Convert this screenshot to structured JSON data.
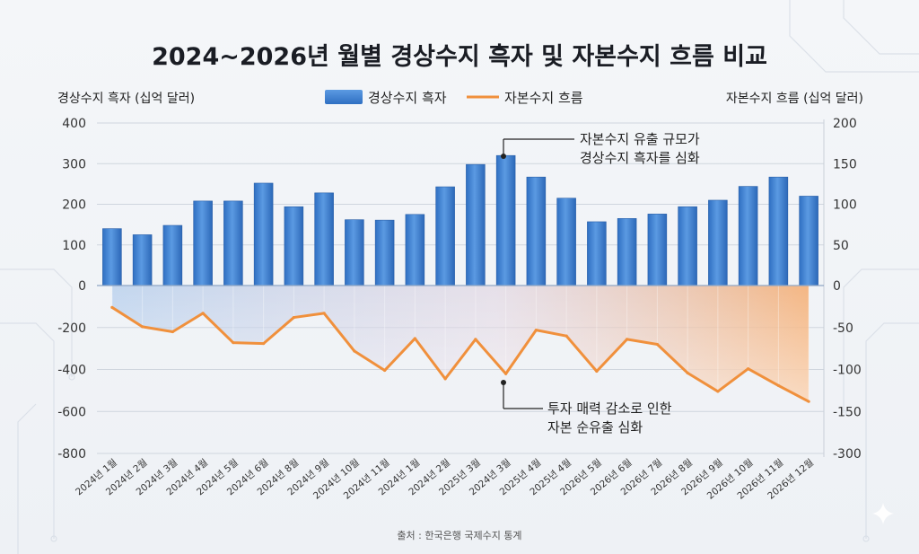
{
  "chart_data": {
    "type": "bar+line",
    "title": "2024~2026년 월별 경상수지 흑자 및 자본수지 흐름 비교",
    "ylabel_left": "경상수지 흑자 (십억 달러)",
    "ylabel_right": "자본수지 흐름 (십억 달러)",
    "ylim_left": [
      -800,
      400
    ],
    "ylim_right": [
      -300,
      200
    ],
    "yticks_left": [
      "400",
      "300",
      "200",
      "100",
      "0",
      "-200",
      "-400",
      "-600",
      "-800"
    ],
    "yticks_right": [
      "200",
      "150",
      "100",
      "50",
      "0",
      "-50",
      "-100",
      "-150",
      "-300"
    ],
    "categories": [
      "2024년 1월",
      "2024년 2월",
      "2024년 3월",
      "2024년 4월",
      "2024년 5월",
      "2024년 6월",
      "2024년 8월",
      "2024년 9월",
      "2024년 10월",
      "2024년 11월",
      "2024년 1월",
      "2024년 2월",
      "2025년 3월",
      "2024년 3월",
      "2025년 4월",
      "2025년 4월",
      "2026년 5월",
      "2026년 6월",
      "2026년 7월",
      "2026년 8월",
      "2026년 9월",
      "2026년 10월",
      "2026년 11월",
      "2026년 12월"
    ],
    "series": [
      {
        "name": "경상수지 흑자",
        "type": "bar",
        "axis": "left",
        "values": [
          140,
          125,
          148,
          208,
          208,
          252,
          194,
          228,
          162,
          161,
          175,
          243,
          298,
          320,
          267,
          215,
          157,
          165,
          176,
          194,
          210,
          244,
          267,
          220
        ]
      },
      {
        "name": "자본수지 흐름",
        "type": "line",
        "axis": "right",
        "values": [
          -26,
          -49,
          -55,
          -33,
          -68,
          -69,
          -38,
          -33,
          -78,
          -101,
          -63,
          -111,
          -64,
          -105,
          -53,
          -60,
          -102,
          -64,
          -70,
          -104,
          -126,
          -99,
          -119,
          -138
        ]
      }
    ],
    "annotations": [
      {
        "lines": [
          "자본수지 유출 규모가",
          "경상수지 흑자를 심화"
        ],
        "target_index": 13,
        "target_series": "경상수지 흑자"
      },
      {
        "lines": [
          "투자 매력 감소로 인한",
          "자본 순유출 심화"
        ],
        "target_index": 13,
        "target_series": "자본수지 흐름"
      }
    ],
    "source": "출처 : 한국은행 국제수지 통계",
    "grid": true,
    "legend": "top-center",
    "colors": {
      "bar": "#3b7fd0",
      "bar_light": "#6aa6e8",
      "line": "#f0903c",
      "fill_blue": "#9dbfe8",
      "fill_orange": "#f5a766"
    }
  }
}
